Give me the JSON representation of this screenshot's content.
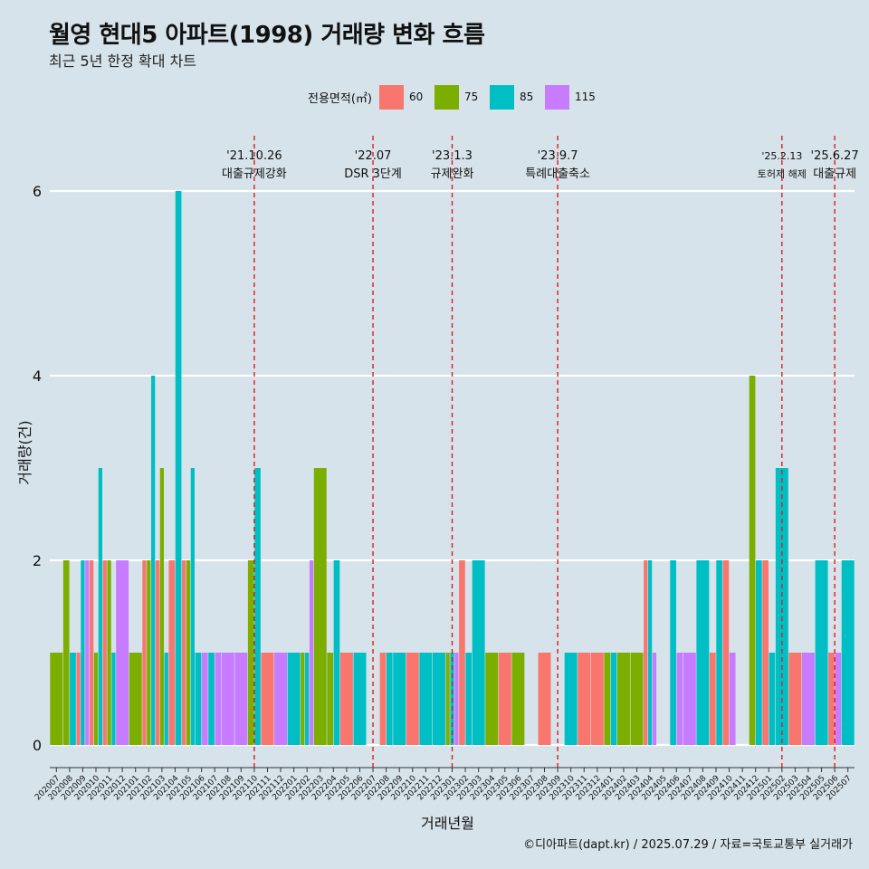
{
  "header": {
    "title": "월영 현대5 아파트(1998) 거래량 변화 흐름",
    "subtitle": "최근 5년 한정 확대 차트"
  },
  "legend": {
    "title": "전용면적(㎡)",
    "items": [
      {
        "label": "60",
        "color": "#f8766d"
      },
      {
        "label": "75",
        "color": "#7cae00"
      },
      {
        "label": "85",
        "color": "#00bfc4"
      },
      {
        "label": "115",
        "color": "#c77cff"
      }
    ]
  },
  "caption": "©디아파트(dapt.kr) / 2025.07.29 / 자료=국토교통부 실거래가",
  "chart_data": {
    "type": "bar",
    "title": "월영 현대5 아파트(1998) 거래량 변화 흐름",
    "subtitle": "최근 5년 한정 확대 차트",
    "xlabel": "거래년월",
    "ylabel": "거래량(건)",
    "ylim": [
      -0.25,
      6.5
    ],
    "yticks": [
      0,
      2,
      4,
      6
    ],
    "categories": [
      "202007",
      "202008",
      "202009",
      "202010",
      "202011",
      "202012",
      "202101",
      "202102",
      "202103",
      "202104",
      "202105",
      "202106",
      "202107",
      "202108",
      "202109",
      "202110",
      "202111",
      "202112",
      "202201",
      "202202",
      "202203",
      "202204",
      "202205",
      "202206",
      "202207",
      "202208",
      "202209",
      "202210",
      "202211",
      "202212",
      "202301",
      "202302",
      "202303",
      "202304",
      "202305",
      "202306",
      "202307",
      "202308",
      "202309",
      "202310",
      "202311",
      "202312",
      "202401",
      "202402",
      "202403",
      "202404",
      "202405",
      "202406",
      "202407",
      "202408",
      "202409",
      "202410",
      "202411",
      "202412",
      "202501",
      "202502",
      "202503",
      "202504",
      "202505",
      "202506",
      "202507"
    ],
    "series": [
      {
        "name": "60",
        "color": "#f8766d",
        "values": [
          0,
          0,
          1,
          2,
          2,
          0,
          0,
          2,
          2,
          2,
          2,
          0,
          0,
          0,
          0,
          0,
          1,
          0,
          0,
          0,
          0,
          0,
          1,
          0,
          0,
          1,
          0,
          1,
          0,
          0,
          0,
          2,
          0,
          0,
          1,
          0,
          0,
          1,
          0,
          0,
          1,
          1,
          0,
          0,
          0,
          2,
          0,
          0,
          0,
          0,
          1,
          2,
          0,
          0,
          2,
          0,
          1,
          0,
          0,
          1,
          0
        ]
      },
      {
        "name": "75",
        "color": "#7cae00",
        "values": [
          1,
          2,
          0,
          1,
          2,
          0,
          1,
          2,
          3,
          0,
          2,
          0,
          0,
          0,
          0,
          2,
          0,
          0,
          0,
          1,
          3,
          1,
          0,
          0,
          0,
          0,
          0,
          0,
          0,
          0,
          1,
          0,
          0,
          1,
          0,
          1,
          0,
          0,
          0,
          0,
          0,
          0,
          1,
          1,
          1,
          0,
          0,
          0,
          0,
          0,
          0,
          0,
          0,
          4,
          0,
          0,
          0,
          0,
          0,
          0,
          0
        ]
      },
      {
        "name": "85",
        "color": "#00bfc4",
        "values": [
          0,
          1,
          2,
          3,
          1,
          0,
          0,
          4,
          1,
          6,
          3,
          1,
          1,
          0,
          0,
          3,
          0,
          0,
          1,
          1,
          0,
          2,
          0,
          1,
          0,
          1,
          1,
          0,
          1,
          1,
          1,
          1,
          2,
          0,
          0,
          0,
          0,
          0,
          0,
          1,
          0,
          0,
          1,
          0,
          0,
          2,
          0,
          2,
          0,
          2,
          2,
          0,
          0,
          2,
          1,
          3,
          0,
          0,
          2,
          0,
          2
        ]
      },
      {
        "name": "115",
        "color": "#c77cff",
        "values": [
          0,
          0,
          2,
          0,
          0,
          2,
          0,
          0,
          0,
          0,
          0,
          1,
          1,
          1,
          1,
          0,
          0,
          1,
          0,
          2,
          0,
          0,
          0,
          0,
          0,
          0,
          0,
          0,
          0,
          0,
          1,
          0,
          0,
          0,
          0,
          0,
          0,
          0,
          0,
          0,
          0,
          0,
          0,
          0,
          0,
          1,
          0,
          1,
          1,
          0,
          0,
          1,
          0,
          0,
          0,
          0,
          0,
          1,
          0,
          1,
          0
        ]
      }
    ],
    "annotations": [
      {
        "date": "'21.10.26",
        "label": "대출규제강화",
        "x": "202110"
      },
      {
        "date": "'22.07",
        "label": "DSR 3단계",
        "x": "202207"
      },
      {
        "date": "'23.1.3",
        "label": "규제완화",
        "x": "202301"
      },
      {
        "date": "'23.9.7",
        "label": "특례대출축소",
        "x": "202309"
      },
      {
        "date": "'25.2.13",
        "label": "토허제 해제",
        "x": "202502"
      },
      {
        "date": "'25.6.27",
        "label": "대출규제",
        "x": "202506"
      }
    ]
  }
}
